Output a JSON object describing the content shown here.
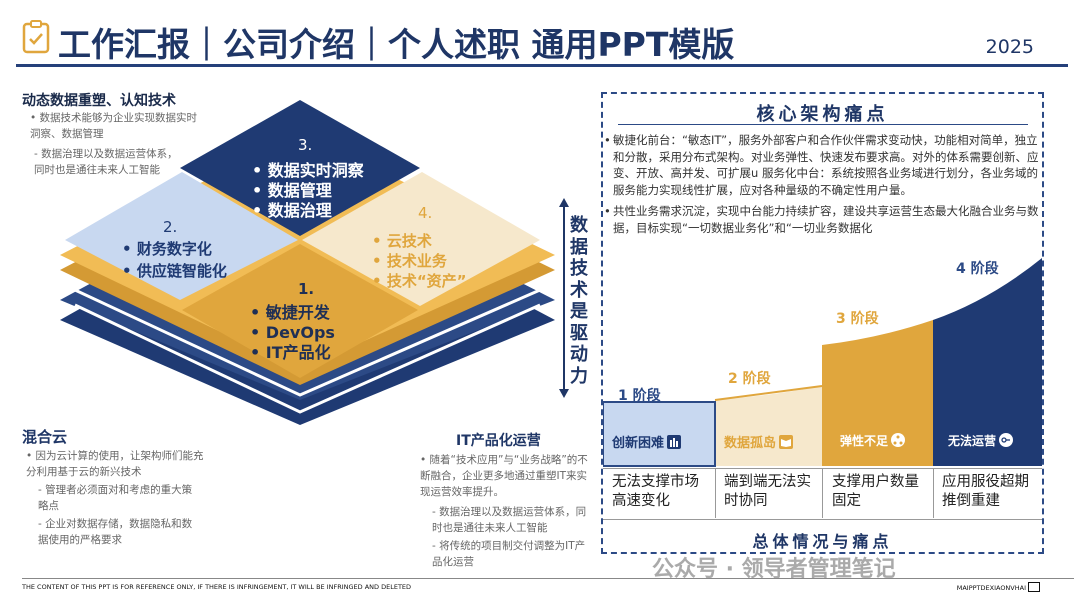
{
  "header": {
    "title": "工作汇报｜公司介绍｜个人述职 通用PPT模版",
    "year": "2025"
  },
  "top_left": {
    "title": "动态数据重塑、认知技术",
    "bullets": [
      "数据技术能够为企业实现数据实时洞察、数据管理"
    ],
    "subbullets": [
      "数据治理以及数据运营体系，同时也是通往未来人工智能"
    ]
  },
  "cube": {
    "tile1": {
      "num": "1.",
      "items": [
        "敏捷开发",
        "DevOps",
        "IT产品化"
      ]
    },
    "tile2": {
      "num": "2.",
      "items": [
        "财务数字化",
        "供应链智能化"
      ]
    },
    "tile3": {
      "num": "3.",
      "items": [
        "数据实时洞察",
        "数据管理",
        "数据治理"
      ]
    },
    "tile4": {
      "num": "4.",
      "items": [
        "云技术",
        "技术业务",
        "技术“资产”"
      ]
    }
  },
  "hybrid_cloud": {
    "title": "混合云",
    "bullet": "因为云计算的使用，让架构师们能充分利用基于云的新兴技术",
    "subbullets": [
      "管理者必须面对和考虑的重大策略点",
      "企业对数据存储，数据隐私和数据使用的严格要求"
    ]
  },
  "it_product": {
    "title": "IT产品化运营",
    "bullet": "随着“技术应用”与“业务战略”的不断融合，企业更多地通过重塑IT来实现运营效率提升。",
    "subbullets": [
      "数据治理以及数据运营体系，同时也是通往未来人工智能",
      "将传统的项目制交付调整为IT产品化运营"
    ]
  },
  "vertical_label": "数据技术是驱动力",
  "core_box": {
    "title": "核心架构痛点",
    "paragraphs": [
      "敏捷化前台：“敏态IT”，服务外部客户和合作伙伴需求变动快，功能相对简单，独立和分散，采用分布式架构。对业务弹性、快速发布要求高。对外的体系需要创新、应变、开放、高并发、可扩展u 服务化中台：系统按照各业务域进行划分，各业务域的服务能力实现线性扩展，应对各种量级的不确定性用户量。",
      "共性业务需求沉淀，实现中台能力持续扩容，建设共享运营生态最大化融合业务与数据，目标实现“一切数据业务化”和“一切业务数据化"
    ],
    "stages": [
      {
        "label": "1 阶段",
        "tag": "创新困难",
        "icon": "building-icon",
        "desc": "无法支撑市场高速变化",
        "color": "#2c4a86"
      },
      {
        "label": "2 阶段",
        "tag": "数据孤岛",
        "icon": "book-icon",
        "desc": "端到端无法实时协同",
        "color": "#e0a63d"
      },
      {
        "label": "3 阶段",
        "tag": "弹性不足",
        "icon": "network-icon",
        "desc": "支撑用户数量固定",
        "color": "#e0a63d"
      },
      {
        "label": "4 阶段",
        "tag": "无法运营",
        "icon": "key-icon",
        "desc": "应用服役超期推倒重建",
        "color": "#2c4a86"
      }
    ],
    "bottom_title": "总体情况与痛点"
  },
  "footer": {
    "disclaimer": "THE CONTENT OF THIS PPT IS FOR REFERENCE ONLY, IF THERE IS INFRINGEMENT, IT WILL BE INFRINGED AND DELETED",
    "brand": "MAIPPTDEXIAONVHAI",
    "watermark": "公众号 · 领导者管理笔记"
  },
  "colors": {
    "navy": "#1f3666",
    "gold": "#e0a63d",
    "lightblue": "#c8d8f0",
    "cream": "#f6e8cc"
  }
}
